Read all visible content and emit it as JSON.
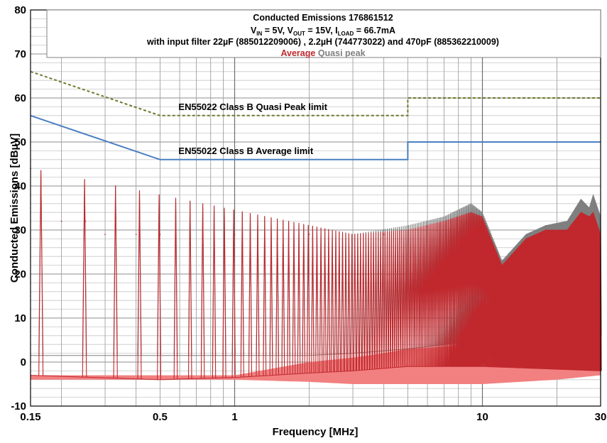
{
  "chart_data": {
    "type": "line",
    "title": {
      "line1": "Conducted Emissions 176861512",
      "line2": {
        "v_in": "V",
        "v_in_sub": "IN",
        "v_in_val": " = 5V, ",
        "v_out": "V",
        "v_out_sub": "OUT",
        "v_out_val": " = 15V, ",
        "i_load": "I",
        "i_load_sub": "LOAD",
        "i_load_val": " = 66.7mA"
      },
      "line3": "with input filter 22µF (885012209006) , 2.2µH (744773022) and 470pF (885362210009)"
    },
    "legend": [
      {
        "name": "Average",
        "color": "#C0282D"
      },
      {
        "name": "Quasi peak",
        "color": "#7F7F7F"
      }
    ],
    "legend_placement": "top-center",
    "xlabel": "Frequency [MHz]",
    "ylabel": "Conducted Emissions [dBµV]",
    "x_scale": "log",
    "xlim": [
      0.15,
      30
    ],
    "ylim": [
      -10,
      80
    ],
    "grid": true,
    "x_ticks": [
      {
        "value": 0.15,
        "label": "0.15"
      },
      {
        "value": 0.5,
        "label": "0.5"
      },
      {
        "value": 1,
        "label": "1"
      },
      {
        "value": 10,
        "label": "10"
      },
      {
        "value": 30,
        "label": "30"
      }
    ],
    "y_ticks": [
      -10,
      0,
      10,
      20,
      30,
      40,
      50,
      60,
      70,
      80
    ],
    "limits": [
      {
        "name": "EN55022 Class B Quasi Peak limit",
        "color": "#6B7A2A",
        "style": "dashed",
        "points": [
          [
            0.15,
            66
          ],
          [
            0.5,
            56
          ],
          [
            5,
            56
          ],
          [
            5,
            60
          ],
          [
            30,
            60
          ]
        ]
      },
      {
        "name": "EN55022 Class B Average limit",
        "color": "#4A7EC2",
        "style": "solid",
        "points": [
          [
            0.15,
            56
          ],
          [
            0.5,
            46
          ],
          [
            5,
            46
          ],
          [
            5,
            50
          ],
          [
            30,
            50
          ]
        ]
      }
    ],
    "series": [
      {
        "name": "Quasi peak",
        "color": "#7F7F7F",
        "fundamental_mhz": 0.0826,
        "peaks": [
          [
            0.15,
            44
          ],
          [
            0.2,
            32
          ],
          [
            0.25,
            32
          ],
          [
            0.3,
            29
          ],
          [
            0.4,
            29
          ],
          [
            0.5,
            29
          ],
          [
            1,
            29
          ],
          [
            2,
            29
          ],
          [
            4,
            30
          ],
          [
            7,
            31
          ],
          [
            9,
            34
          ],
          [
            10,
            33
          ],
          [
            12,
            21
          ],
          [
            15,
            28
          ],
          [
            18,
            31
          ],
          [
            25,
            34
          ],
          [
            30,
            30
          ]
        ],
        "envelope_top": [
          [
            0.15,
            44
          ],
          [
            3,
            29
          ],
          [
            5,
            31
          ],
          [
            7,
            33
          ],
          [
            9,
            36
          ],
          [
            10,
            34
          ],
          [
            12,
            23
          ],
          [
            15,
            29
          ],
          [
            18,
            31
          ],
          [
            22,
            32
          ],
          [
            25,
            37
          ],
          [
            27,
            35
          ],
          [
            28,
            38
          ],
          [
            30,
            33
          ]
        ],
        "floor": [
          [
            0.15,
            1.5
          ],
          [
            0.5,
            1.5
          ],
          [
            1,
            1.5
          ],
          [
            2,
            1.5
          ],
          [
            3,
            2
          ],
          [
            5,
            3
          ],
          [
            10,
            5
          ],
          [
            30,
            6
          ]
        ]
      },
      {
        "name": "Average",
        "color": "#C0282D",
        "fundamental_mhz": 0.0826,
        "peaks": [
          [
            0.15,
            44
          ],
          [
            0.2,
            32
          ],
          [
            0.25,
            32
          ],
          [
            0.3,
            29
          ],
          [
            0.4,
            29
          ],
          [
            0.5,
            29
          ],
          [
            1,
            29
          ],
          [
            2,
            29
          ],
          [
            4,
            29
          ],
          [
            7,
            30
          ],
          [
            9,
            33
          ],
          [
            10,
            32
          ],
          [
            12,
            20
          ],
          [
            15,
            27
          ],
          [
            18,
            30
          ],
          [
            25,
            31
          ],
          [
            30,
            28
          ]
        ],
        "envelope_top": [
          [
            0.15,
            44
          ],
          [
            3,
            29
          ],
          [
            5,
            30
          ],
          [
            7,
            32
          ],
          [
            9,
            34
          ],
          [
            10,
            33
          ],
          [
            12,
            22
          ],
          [
            15,
            28
          ],
          [
            18,
            30
          ],
          [
            22,
            30
          ],
          [
            25,
            34
          ],
          [
            27,
            33
          ],
          [
            28,
            34
          ],
          [
            30,
            29
          ]
        ],
        "floor": [
          [
            0.15,
            -3
          ],
          [
            0.5,
            -4
          ],
          [
            1,
            -3.5
          ],
          [
            2,
            -2.5
          ],
          [
            3,
            -2
          ],
          [
            5,
            -1
          ],
          [
            10,
            -1
          ],
          [
            30,
            -2
          ]
        ]
      }
    ],
    "noise_fill": {
      "name": "Average floor variation",
      "color": "#F28080",
      "top": [
        [
          0.15,
          -3
        ],
        [
          1,
          -3
        ],
        [
          2,
          0
        ],
        [
          3,
          1
        ],
        [
          4,
          2
        ],
        [
          5,
          3
        ],
        [
          10,
          4
        ],
        [
          20,
          4.5
        ],
        [
          30,
          3
        ]
      ],
      "bottom": [
        [
          0.15,
          -4
        ],
        [
          1,
          -4
        ],
        [
          2,
          -4.5
        ],
        [
          3,
          -5
        ],
        [
          5,
          -5
        ],
        [
          10,
          -5
        ],
        [
          20,
          -4
        ],
        [
          30,
          -3
        ]
      ]
    }
  }
}
